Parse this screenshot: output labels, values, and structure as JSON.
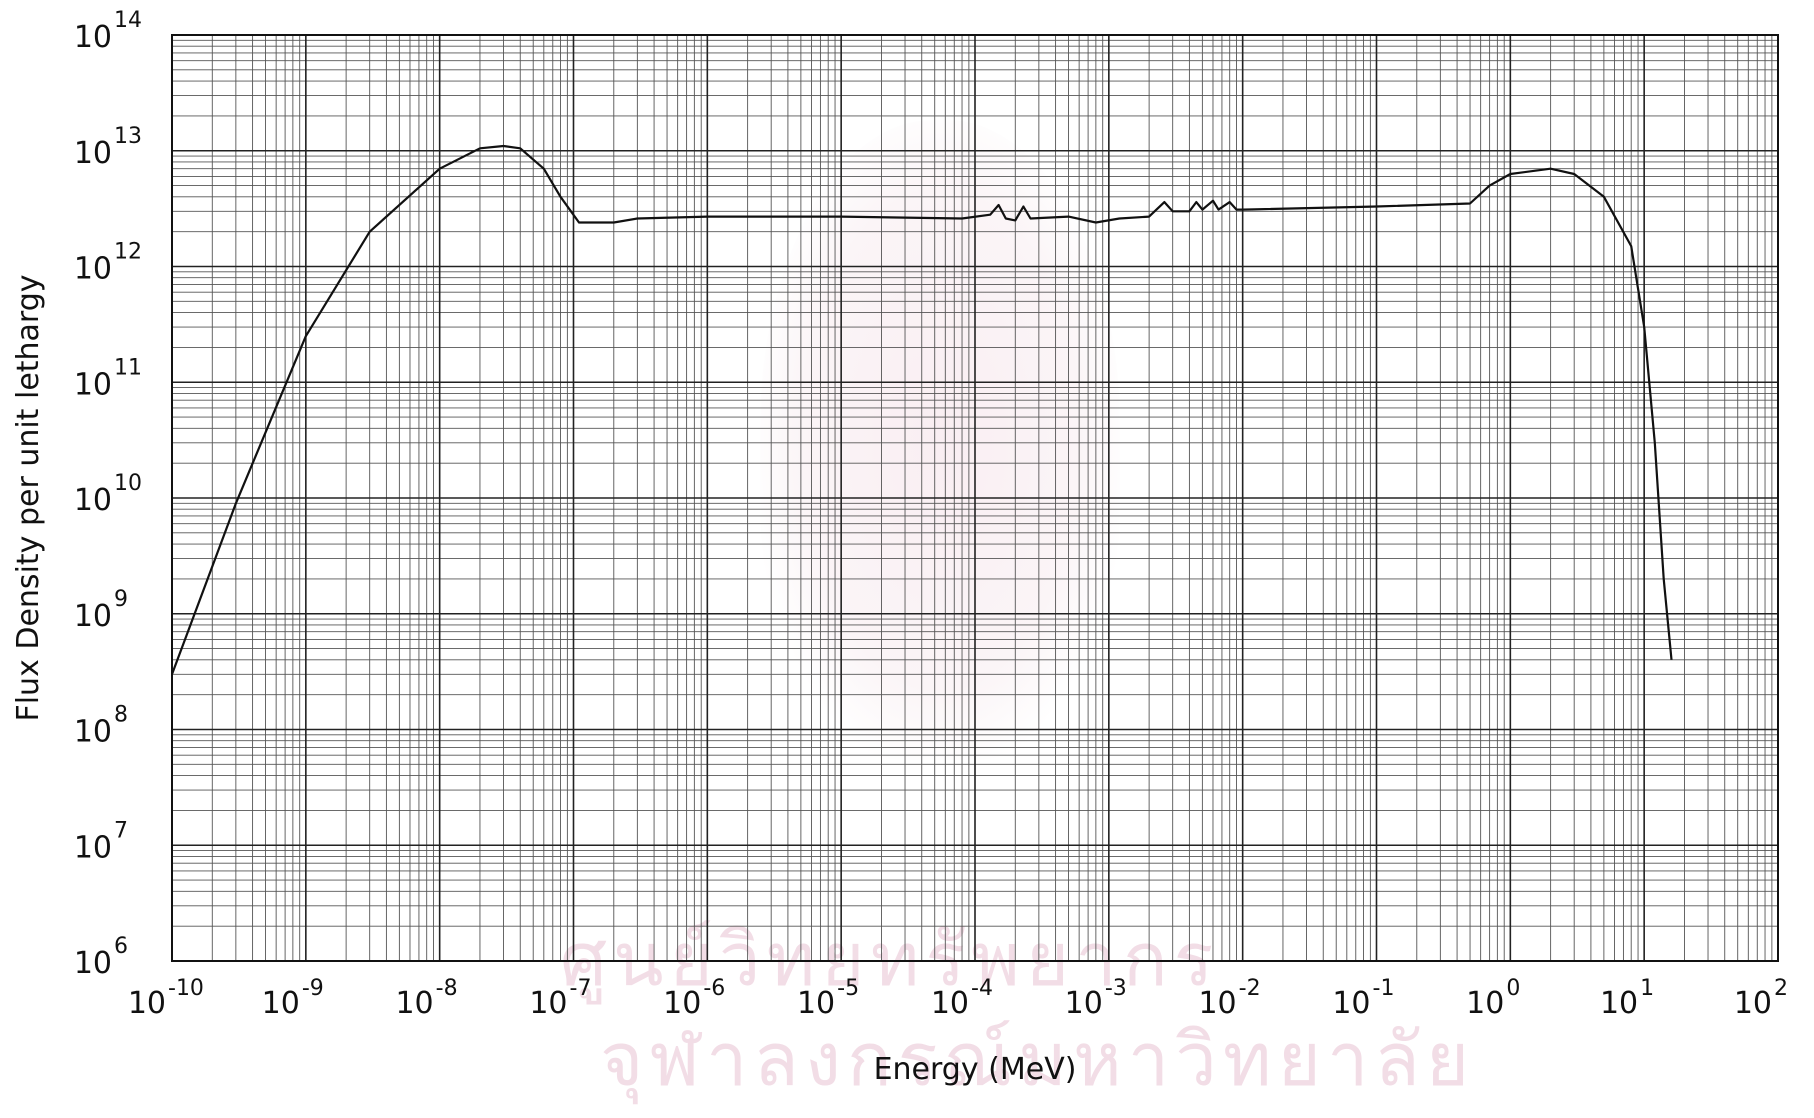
{
  "watermark": {
    "line1": "ศูนย์วิทยทรัพยากร",
    "line2": "จุฬาลงกรณ์มหาวิทยาลัย"
  },
  "chart_data": {
    "type": "line",
    "xscale": "log",
    "yscale": "log",
    "xlabel": "Energy (MeV)",
    "ylabel": "Flux Density per unit lethargy",
    "xlim": [
      1e-10,
      100
    ],
    "ylim": [
      1000000.0,
      100000000000000.0
    ],
    "grid": true,
    "x_ticks": [
      {
        "base": "10",
        "exp": "-10"
      },
      {
        "base": "10",
        "exp": "-9"
      },
      {
        "base": "10",
        "exp": "-8"
      },
      {
        "base": "10",
        "exp": "-7"
      },
      {
        "base": "10",
        "exp": "-6"
      },
      {
        "base": "10",
        "exp": "-5"
      },
      {
        "base": "10",
        "exp": "-4"
      },
      {
        "base": "10",
        "exp": "-3"
      },
      {
        "base": "10",
        "exp": "-2"
      },
      {
        "base": "10",
        "exp": "-1"
      },
      {
        "base": "10",
        "exp": "0"
      },
      {
        "base": "10",
        "exp": "1"
      },
      {
        "base": "10",
        "exp": "2"
      }
    ],
    "y_ticks": [
      {
        "base": "10",
        "exp": "6"
      },
      {
        "base": "10",
        "exp": "7"
      },
      {
        "base": "10",
        "exp": "8"
      },
      {
        "base": "10",
        "exp": "9"
      },
      {
        "base": "10",
        "exp": "10"
      },
      {
        "base": "10",
        "exp": "11"
      },
      {
        "base": "10",
        "exp": "12"
      },
      {
        "base": "10",
        "exp": "13"
      },
      {
        "base": "10",
        "exp": "14"
      }
    ],
    "series": [
      {
        "points": [
          [
            1e-10,
            300000000.0
          ],
          [
            3e-10,
            9000000000.0
          ],
          [
            1e-09,
            250000000000.0
          ],
          [
            3e-09,
            2000000000000.0
          ],
          [
            1e-08,
            7000000000000.0
          ],
          [
            2e-08,
            10500000000000.0
          ],
          [
            3e-08,
            11000000000000.0
          ],
          [
            4e-08,
            10500000000000.0
          ],
          [
            6e-08,
            7000000000000.0
          ],
          [
            8e-08,
            4000000000000.0
          ],
          [
            1.1e-07,
            2400000000000.0
          ],
          [
            2e-07,
            2400000000000.0
          ],
          [
            3e-07,
            2600000000000.0
          ],
          [
            1e-06,
            2700000000000.0
          ],
          [
            1e-05,
            2700000000000.0
          ],
          [
            8e-05,
            2600000000000.0
          ],
          [
            0.00013,
            2800000000000.0
          ],
          [
            0.00015,
            3400000000000.0
          ],
          [
            0.00017,
            2600000000000.0
          ],
          [
            0.0002,
            2500000000000.0
          ],
          [
            0.00023,
            3300000000000.0
          ],
          [
            0.00026,
            2600000000000.0
          ],
          [
            0.0005,
            2700000000000.0
          ],
          [
            0.0008,
            2400000000000.0
          ],
          [
            0.0012,
            2600000000000.0
          ],
          [
            0.002,
            2700000000000.0
          ],
          [
            0.0026,
            3600000000000.0
          ],
          [
            0.003,
            3000000000000.0
          ],
          [
            0.004,
            3000000000000.0
          ],
          [
            0.0045,
            3600000000000.0
          ],
          [
            0.005,
            3100000000000.0
          ],
          [
            0.006,
            3700000000000.0
          ],
          [
            0.0066,
            3100000000000.0
          ],
          [
            0.008,
            3600000000000.0
          ],
          [
            0.009,
            3100000000000.0
          ],
          [
            0.01,
            3100000000000.0
          ],
          [
            0.1,
            3300000000000.0
          ],
          [
            0.5,
            3500000000000.0
          ],
          [
            0.7,
            5000000000000.0
          ],
          [
            1.0,
            6300000000000.0
          ],
          [
            2.0,
            7000000000000.0
          ],
          [
            3.0,
            6300000000000.0
          ],
          [
            5.0,
            4000000000000.0
          ],
          [
            8.0,
            1500000000000.0
          ],
          [
            10,
            300000000000.0
          ],
          [
            12,
            30000000000.0
          ],
          [
            14,
            2000000000.0
          ],
          [
            16,
            400000000.0
          ]
        ]
      }
    ]
  }
}
